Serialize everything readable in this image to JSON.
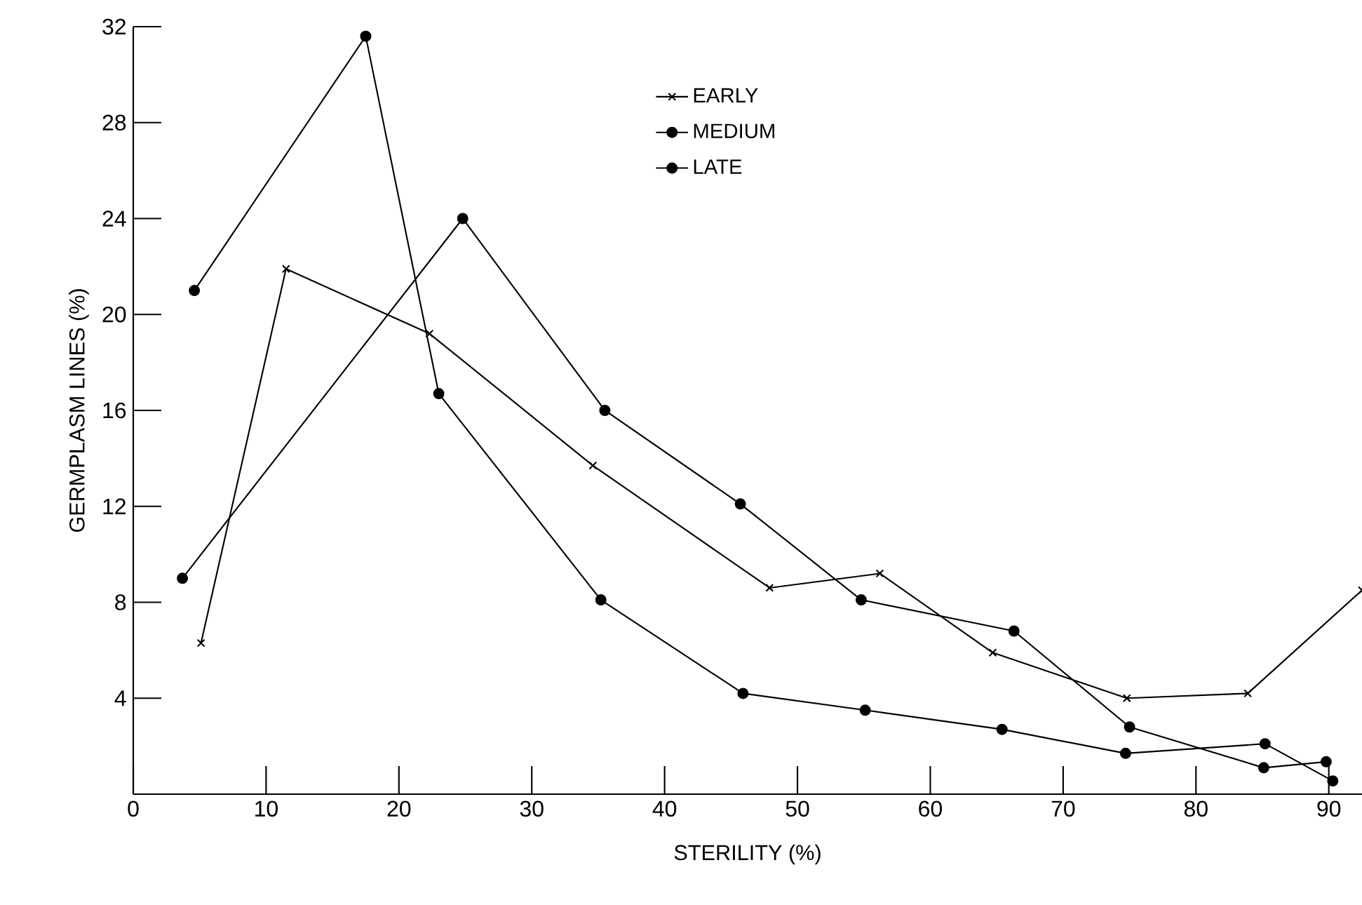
{
  "chart_data": {
    "type": "line",
    "xlabel": "STERILITY (%)",
    "ylabel": "GERMPLASM LINES (%)",
    "xlim": [
      0,
      92.5
    ],
    "xticks": [
      0,
      10,
      20,
      30,
      40,
      50,
      60,
      70,
      80,
      90
    ],
    "ylim": [
      0,
      32
    ],
    "yticks": [
      4,
      8,
      12,
      16,
      20,
      24,
      28,
      32
    ],
    "legend": "top",
    "grid": false,
    "line_style": "solid",
    "series": [
      {
        "name": "EARLY",
        "color": "#000000",
        "marker": "cross",
        "x": [
          5.1,
          11.5,
          22.3,
          34.6,
          47.9,
          56.2,
          64.7,
          74.8,
          83.9,
          92.5
        ],
        "values": [
          6.3,
          21.9,
          19.2,
          13.7,
          8.6,
          9.2,
          5.9,
          4.0,
          4.2,
          8.5
        ]
      },
      {
        "name": "MEDIUM",
        "color": "#000000",
        "marker": "circle",
        "x": [
          3.7,
          24.8,
          35.5,
          45.7,
          54.8,
          66.3,
          75.0,
          85.1,
          89.8
        ],
        "values": [
          9.0,
          24.0,
          16.0,
          12.1,
          8.1,
          6.8,
          2.8,
          1.1,
          1.35
        ]
      },
      {
        "name": "LATE",
        "color": "#000000",
        "marker": "circle",
        "x": [
          4.6,
          17.5,
          23.0,
          35.2,
          45.9,
          55.1,
          65.4,
          74.7,
          85.2,
          90.3
        ],
        "values": [
          21.0,
          31.6,
          16.7,
          8.1,
          4.2,
          3.5,
          2.7,
          1.7,
          2.1,
          0.55
        ]
      }
    ]
  }
}
